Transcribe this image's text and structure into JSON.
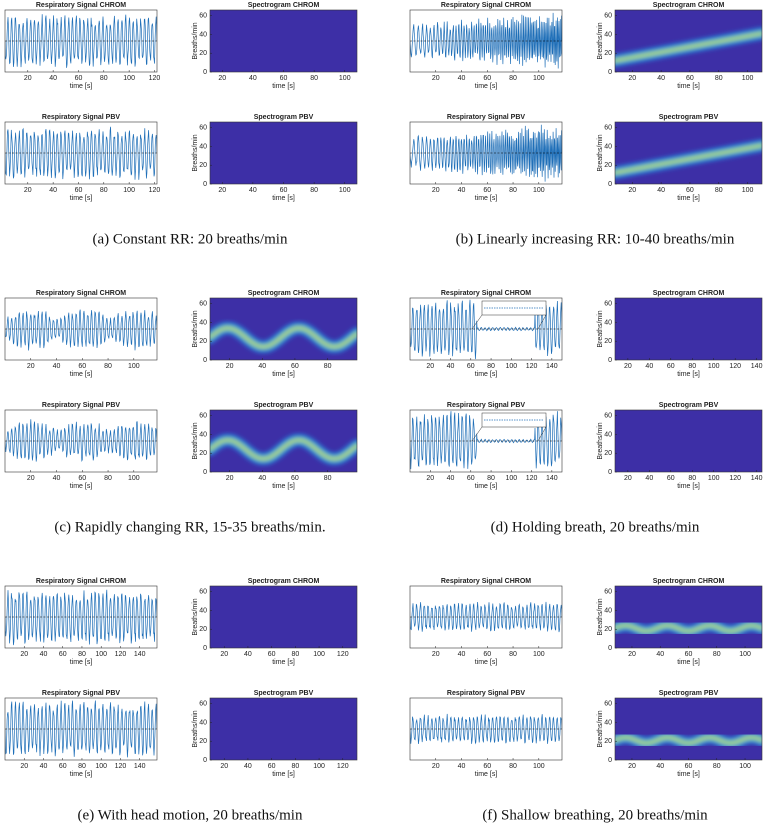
{
  "panels": [
    {
      "caption": "(a) Constant RR: 20 breaths/min",
      "plots": [
        {
          "title": "Respiratory Signal CHROM",
          "xlabel": "time [s]",
          "xlim": [
            2,
            122
          ],
          "xticks": [
            20,
            40,
            60,
            80,
            100,
            120
          ]
        },
        {
          "title": "Spectrogram CHROM",
          "xlabel": "time [s]",
          "ylabel": "Breaths/min",
          "xlim": [
            12,
            108
          ],
          "xticks": [
            20,
            40,
            60,
            80,
            100
          ],
          "ylim": [
            0,
            66
          ],
          "yticks": [
            0,
            20,
            40,
            60
          ]
        },
        {
          "title": "Respiratory Signal PBV",
          "xlabel": "time [s]",
          "xlim": [
            2,
            122
          ],
          "xticks": [
            20,
            40,
            60,
            80,
            100,
            120
          ]
        },
        {
          "title": "Spectrogram PBV",
          "xlabel": "time [s]",
          "ylabel": "Breaths/min",
          "xlim": [
            12,
            108
          ],
          "xticks": [
            20,
            40,
            60,
            80,
            100
          ],
          "ylim": [
            0,
            66
          ],
          "yticks": [
            0,
            20,
            40,
            60
          ]
        }
      ]
    },
    {
      "caption": "(b) Linearly increasing RR: 10-40 breaths/min",
      "plots": [
        {
          "title": "Respiratory Signal CHROM",
          "xlabel": "time [s]",
          "xlim": [
            0,
            118
          ],
          "xticks": [
            20,
            40,
            60,
            80,
            100
          ]
        },
        {
          "title": "Spectrogram CHROM",
          "xlabel": "time [s]",
          "ylabel": "Breaths/min",
          "xlim": [
            8,
            110
          ],
          "xticks": [
            20,
            40,
            60,
            80,
            100
          ],
          "ylim": [
            0,
            66
          ],
          "yticks": [
            0,
            20,
            40,
            60
          ]
        },
        {
          "title": "Respiratory Signal PBV",
          "xlabel": "time [s]",
          "xlim": [
            0,
            118
          ],
          "xticks": [
            20,
            40,
            60,
            80,
            100
          ]
        },
        {
          "title": "Spectrogram PBV",
          "xlabel": "time [s]",
          "ylabel": "Breaths/min",
          "xlim": [
            8,
            110
          ],
          "xticks": [
            20,
            40,
            60,
            80,
            100
          ],
          "ylim": [
            0,
            66
          ],
          "yticks": [
            0,
            20,
            40,
            60
          ]
        }
      ]
    },
    {
      "caption": "(c) Rapidly changing RR, 15-35 breaths/min.",
      "plots": [
        {
          "title": "Respiratory Signal CHROM",
          "xlabel": "time [s]",
          "xlim": [
            0,
            118
          ],
          "xticks": [
            20,
            40,
            60,
            80,
            100
          ]
        },
        {
          "title": "Spectrogram CHROM",
          "xlabel": "time [s]",
          "ylabel": "Breaths/min",
          "xlim": [
            8,
            98
          ],
          "xticks": [
            20,
            40,
            60,
            80
          ],
          "ylim": [
            0,
            66
          ],
          "yticks": [
            0,
            20,
            40,
            60
          ]
        },
        {
          "title": "Respiratory Signal PBV",
          "xlabel": "time [s]",
          "xlim": [
            0,
            118
          ],
          "xticks": [
            20,
            40,
            60,
            80,
            100
          ]
        },
        {
          "title": "Spectrogram PBV",
          "xlabel": "time [s]",
          "ylabel": "Breaths/min",
          "xlim": [
            8,
            98
          ],
          "xticks": [
            20,
            40,
            60,
            80
          ],
          "ylim": [
            0,
            66
          ],
          "yticks": [
            0,
            20,
            40,
            60
          ]
        }
      ]
    },
    {
      "caption": "(d) Holding breath, 20 breaths/min",
      "plots": [
        {
          "title": "Respiratory Signal CHROM",
          "xlabel": "time [s]",
          "xlim": [
            0,
            150
          ],
          "xticks": [
            20,
            40,
            60,
            80,
            100,
            120,
            140
          ]
        },
        {
          "title": "Spectrogram CHROM",
          "xlabel": "time [s]",
          "ylabel": "Breaths/min",
          "xlim": [
            8,
            145
          ],
          "xticks": [
            20,
            40,
            60,
            80,
            100,
            120,
            140
          ],
          "ylim": [
            0,
            66
          ],
          "yticks": [
            0,
            20,
            40,
            60
          ]
        },
        {
          "title": "Respiratory Signal PBV",
          "xlabel": "time [s]",
          "xlim": [
            0,
            150
          ],
          "xticks": [
            20,
            40,
            60,
            80,
            100,
            120,
            140
          ]
        },
        {
          "title": "Spectrogram PBV",
          "xlabel": "time [s]",
          "ylabel": "Breaths/min",
          "xlim": [
            8,
            145
          ],
          "xticks": [
            20,
            40,
            60,
            80,
            100,
            120,
            140
          ],
          "ylim": [
            0,
            66
          ],
          "yticks": [
            0,
            20,
            40,
            60
          ]
        }
      ]
    },
    {
      "caption": "(e) With head motion, 20 breaths/min",
      "plots": [
        {
          "title": "Respiratory Signal CHROM",
          "xlabel": "time [s]",
          "xlim": [
            0,
            158
          ],
          "xticks": [
            20,
            40,
            60,
            80,
            100,
            120,
            140
          ]
        },
        {
          "title": "Spectrogram CHROM",
          "xlabel": "time [s]",
          "ylabel": "Breaths/min",
          "xlim": [
            8,
            132
          ],
          "xticks": [
            20,
            40,
            60,
            80,
            100,
            120
          ],
          "ylim": [
            0,
            66
          ],
          "yticks": [
            0,
            20,
            40,
            60
          ]
        },
        {
          "title": "Respiratory Signal PBV",
          "xlabel": "time [s]",
          "xlim": [
            0,
            158
          ],
          "xticks": [
            20,
            40,
            60,
            80,
            100,
            120,
            140
          ]
        },
        {
          "title": "Spectrogram PBV",
          "xlabel": "time [s]",
          "ylabel": "Breaths/min",
          "xlim": [
            8,
            132
          ],
          "xticks": [
            20,
            40,
            60,
            80,
            100,
            120
          ],
          "ylim": [
            0,
            66
          ],
          "yticks": [
            0,
            20,
            40,
            60
          ]
        }
      ]
    },
    {
      "caption": "(f) Shallow breathing, 20 breaths/min",
      "plots": [
        {
          "title": "Respiratory Signal CHROM",
          "xlabel": "time [s]",
          "xlim": [
            0,
            118
          ],
          "xticks": [
            20,
            40,
            60,
            80,
            100
          ]
        },
        {
          "title": "Spectrogram CHROM",
          "xlabel": "time [s]",
          "ylabel": "Breaths/min",
          "xlim": [
            8,
            112
          ],
          "xticks": [
            20,
            40,
            60,
            80,
            100
          ],
          "ylim": [
            0,
            66
          ],
          "yticks": [
            0,
            20,
            40,
            60
          ]
        },
        {
          "title": "Respiratory Signal PBV",
          "xlabel": "time [s]",
          "xlim": [
            0,
            118
          ],
          "xticks": [
            20,
            40,
            60,
            80,
            100
          ]
        },
        {
          "title": "Spectrogram PBV",
          "xlabel": "time [s]",
          "ylabel": "Breaths/min",
          "xlim": [
            8,
            112
          ],
          "xticks": [
            20,
            40,
            60,
            80,
            100
          ],
          "ylim": [
            0,
            66
          ],
          "yticks": [
            0,
            20,
            40,
            60
          ]
        }
      ]
    }
  ]
}
